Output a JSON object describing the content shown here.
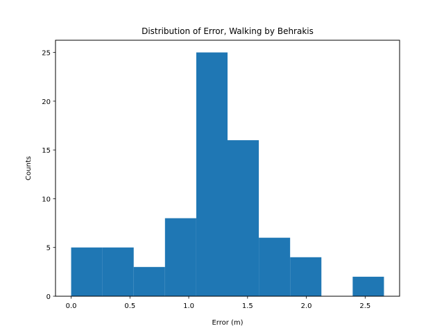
{
  "chart_data": {
    "type": "bar",
    "title": "Distribution of Error, Walking by Behrakis",
    "xlabel": "Error (m)",
    "ylabel": "Counts",
    "bin_edges": [
      0.0,
      0.266,
      0.532,
      0.798,
      1.064,
      1.33,
      1.596,
      1.862,
      2.128,
      2.394,
      2.66
    ],
    "values": [
      5,
      5,
      3,
      8,
      25,
      16,
      6,
      4,
      0,
      2
    ],
    "xlim": [
      -0.133,
      2.793
    ],
    "ylim": [
      0,
      26.25
    ],
    "xticks": [
      0.0,
      0.5,
      1.0,
      1.5,
      2.0,
      2.5
    ],
    "xtick_labels": [
      "0.0",
      "0.5",
      "1.0",
      "1.5",
      "2.0",
      "2.5"
    ],
    "yticks": [
      0,
      5,
      10,
      15,
      20,
      25
    ],
    "ytick_labels": [
      "0",
      "5",
      "10",
      "15",
      "20",
      "25"
    ],
    "grid": false,
    "legend": false,
    "bar_color": "#1f77b4"
  }
}
